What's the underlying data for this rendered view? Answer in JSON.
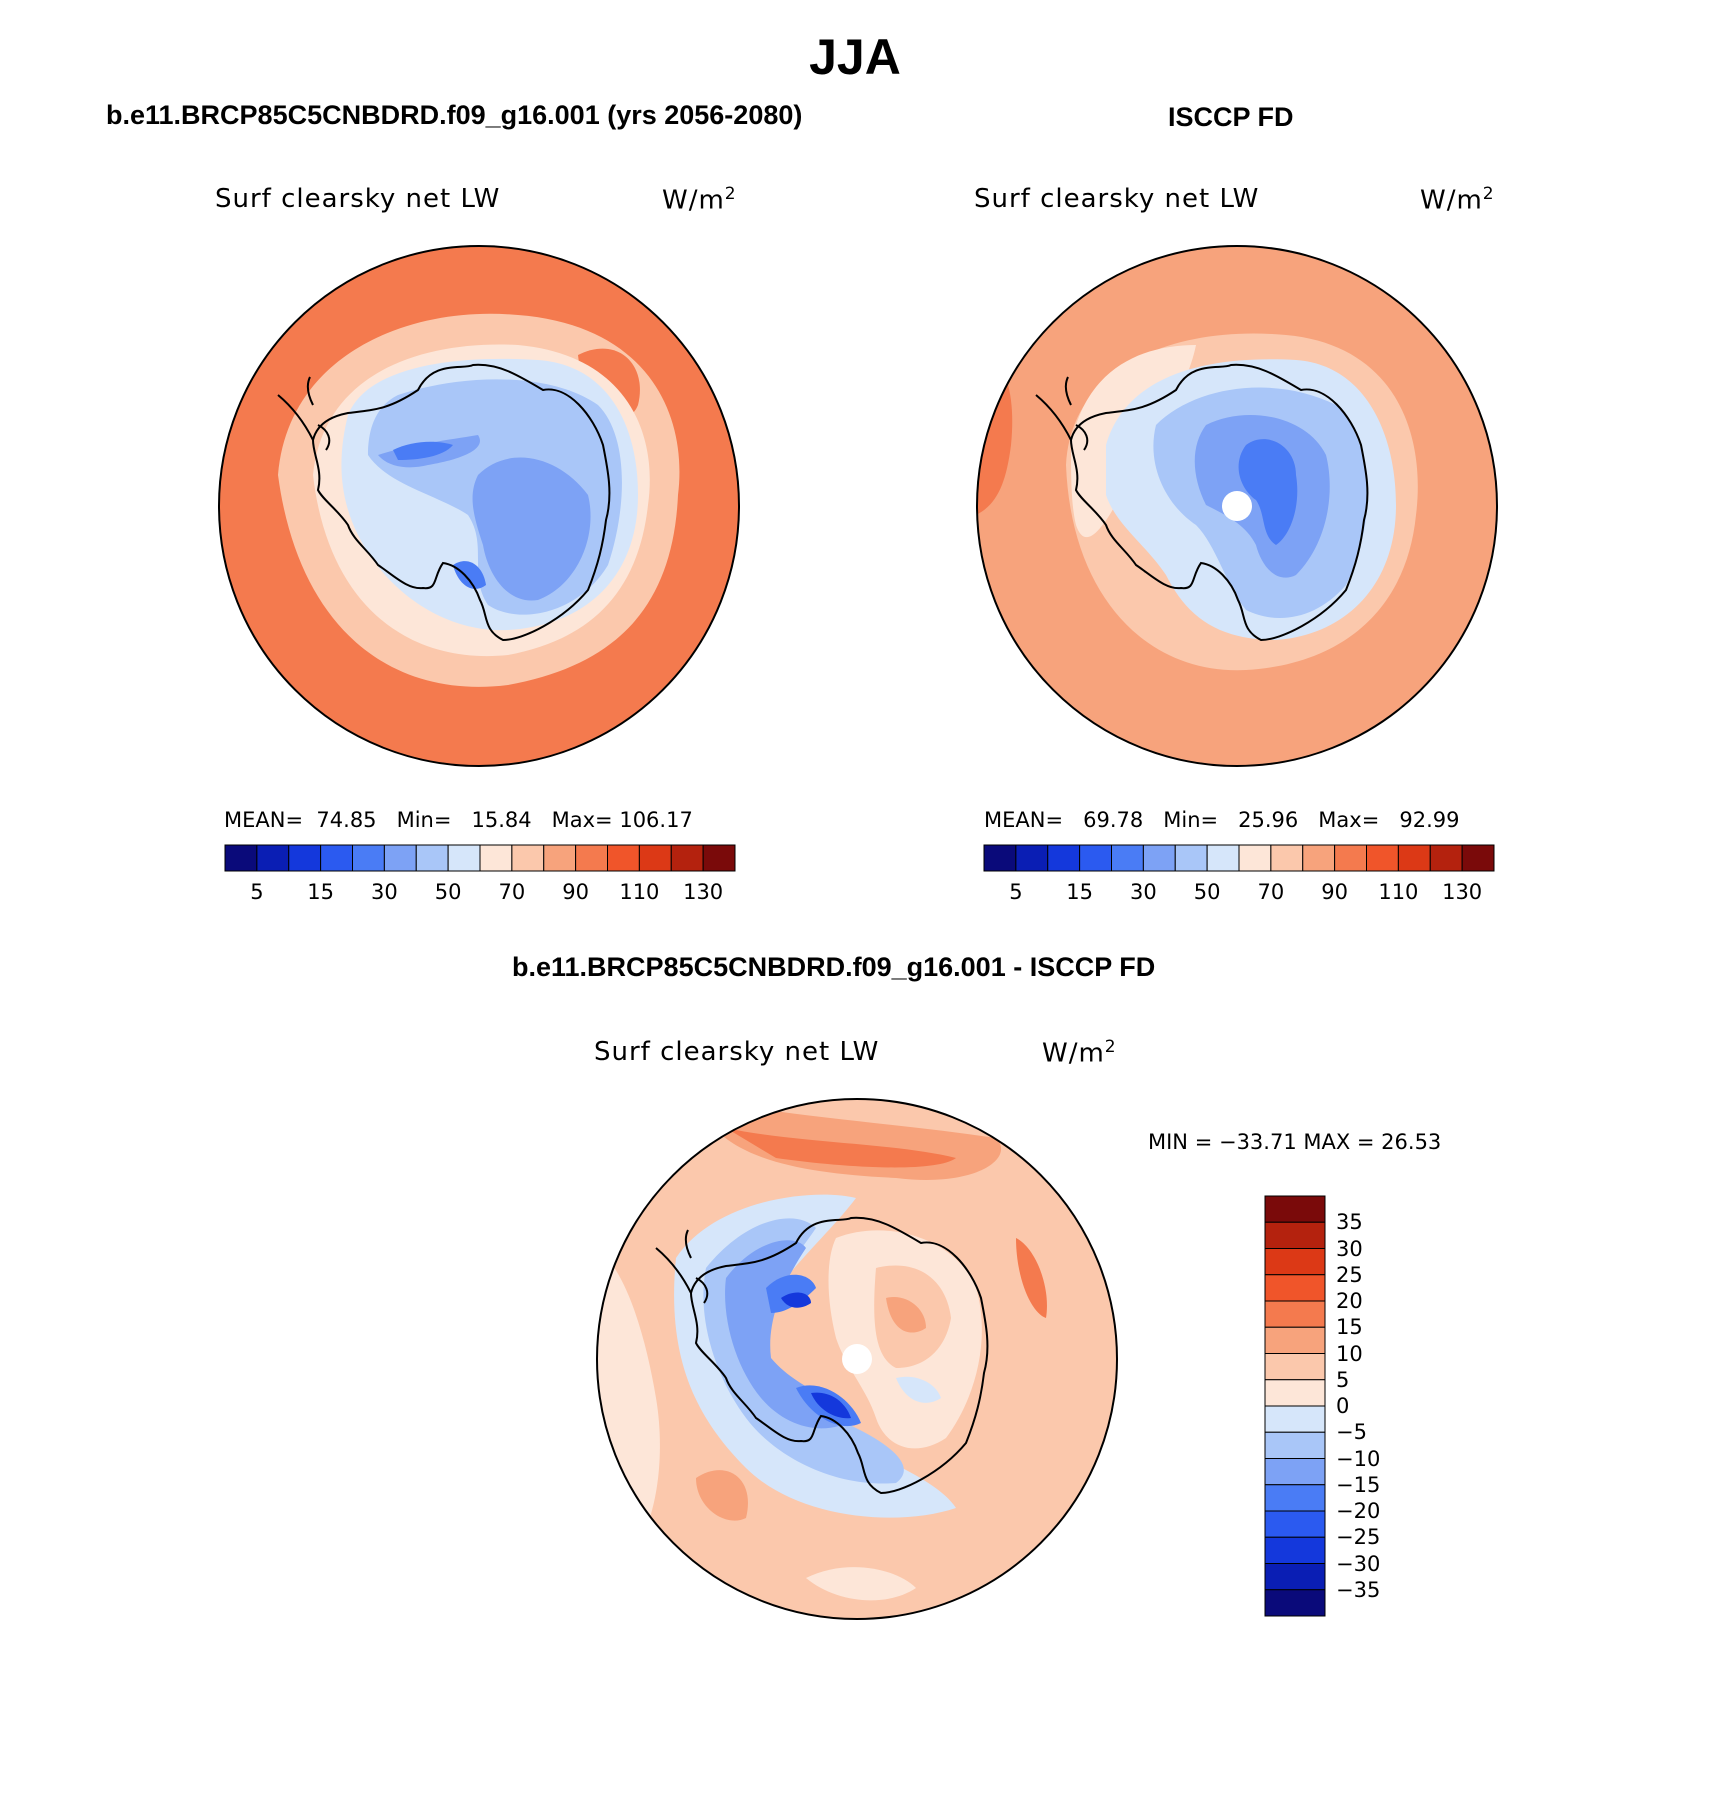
{
  "page_title": "JJA",
  "panels": {
    "model": {
      "heading": "b.e11.BRCP85C5CNBDRD.f09_g16.001 (yrs 2056-2080)",
      "variable": "Surf clearsky net LW",
      "units_base": "W/m",
      "units_sup": "2",
      "stats": {
        "mean_label": "MEAN=",
        "mean": "74.85",
        "min_label": "Min=",
        "min": "15.84",
        "max_label": "Max=",
        "max": "106.17"
      }
    },
    "obs": {
      "heading": "ISCCP FD",
      "variable": "Surf clearsky net LW",
      "units_base": "W/m",
      "units_sup": "2",
      "stats": {
        "mean_label": "MEAN=",
        "mean": "69.78",
        "min_label": "Min=",
        "min": "25.96",
        "max_label": "Max=",
        "max": "92.99"
      }
    },
    "diff": {
      "heading": "b.e11.BRCP85C5CNBDRD.f09_g16.001 - ISCCP FD",
      "variable": "Surf clearsky net LW",
      "units_base": "W/m",
      "units_sup": "2",
      "minmax": "MIN = −33.71   MAX =   26.53"
    }
  },
  "colorbars": {
    "abs": {
      "colors": [
        "#0a0a7a",
        "#0a1eb4",
        "#1438dc",
        "#2b5af0",
        "#4a7cf5",
        "#7da2f5",
        "#a9c6f8",
        "#d6e6fa",
        "#fde6d8",
        "#fbc8ac",
        "#f7a37c",
        "#f47a4e",
        "#f0552a",
        "#dc3916",
        "#b4220e",
        "#7a0a0a"
      ],
      "labels": [
        "5",
        "15",
        "30",
        "50",
        "70",
        "90",
        "110",
        "130"
      ]
    },
    "diff": {
      "colors": [
        "#0a0a7a",
        "#0a1eb4",
        "#1438dc",
        "#2b5af0",
        "#4a7cf5",
        "#7da2f5",
        "#a9c6f8",
        "#d6e6fa",
        "#fde6d8",
        "#fbc8ac",
        "#f7a37c",
        "#f47a4e",
        "#f0552a",
        "#dc3916",
        "#b4220e",
        "#7a0a0a"
      ],
      "labels": [
        "35",
        "30",
        "25",
        "20",
        "15",
        "10",
        "5",
        "0",
        "−5",
        "−10",
        "−15",
        "−20",
        "−25",
        "−30",
        "−35"
      ]
    }
  },
  "map_colors": {
    "ocean_model": "#f47a4e",
    "ocean_obs": "#f7a37c",
    "ocean_diff": "#fbc8ac",
    "ring1": "#fbc8ac",
    "ring2": "#fde6d8",
    "ice1": "#d6e6fa",
    "ice2": "#a9c6f8",
    "ice3": "#7da2f5",
    "ice4": "#4a7cf5",
    "dark": "#1438dc"
  }
}
